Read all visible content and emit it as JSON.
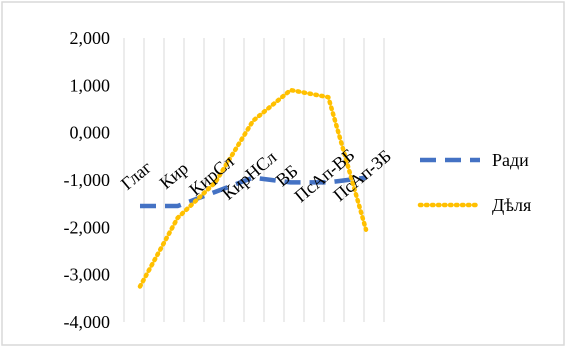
{
  "chart_data": {
    "type": "line",
    "categories": [
      "Глаг",
      "Кир",
      "КирСл",
      "КирНСл",
      "ВБ",
      "ПсАп-ВБ",
      "ПсАп-ЗБ"
    ],
    "series": [
      {
        "name": "Ради",
        "values": [
          -1.55,
          -1.55,
          -1.25,
          -0.95,
          -1.05,
          -1.05,
          -0.95
        ],
        "color": "#4472C4",
        "style": "dashed"
      },
      {
        "name": "Дѣля",
        "values": [
          -3.25,
          -1.8,
          -1.05,
          0.25,
          0.9,
          0.75,
          -2.05
        ],
        "color": "#FFC000",
        "style": "dotted"
      }
    ],
    "y_ticks": [
      "2,000",
      "1,000",
      "0,000",
      "-1,000",
      "-2,000",
      "-3,000",
      "-4,000"
    ],
    "ylim": [
      -4,
      2
    ],
    "grid": true,
    "legend": "right"
  }
}
